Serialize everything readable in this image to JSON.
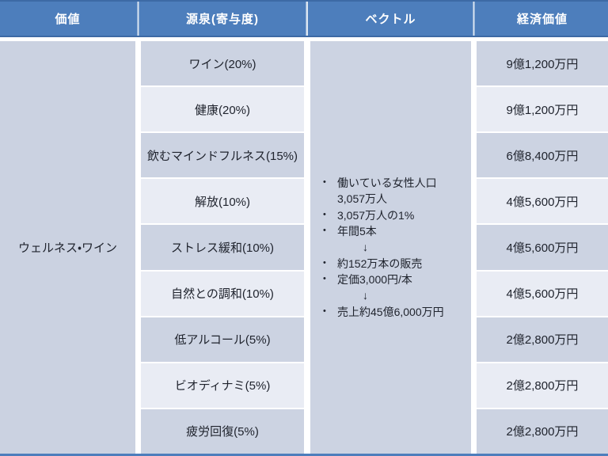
{
  "table": {
    "headers": [
      {
        "label": "価値"
      },
      {
        "label": "源泉(寄与度)"
      },
      {
        "label": "ベクトル"
      },
      {
        "label": "経済価値"
      }
    ],
    "value_cell": "ウェルネス・ワイン",
    "rows": [
      {
        "source": "ワイン(20%)",
        "economic": "9億1,200万円"
      },
      {
        "source": "健康(20%)",
        "economic": "9億1,200万円"
      },
      {
        "source": "飲むマインドフルネス(15%)",
        "economic": "6億8,400万円"
      },
      {
        "source": "解放(10%)",
        "economic": "4億5,600万円"
      },
      {
        "source": "ストレス緩和(10%)",
        "economic": "4億5,600万円"
      },
      {
        "source": "自然との調和(10%)",
        "economic": "4億5,600万円"
      },
      {
        "source": "低アルコール(5%)",
        "economic": "2億2,800万円"
      },
      {
        "source": "ビオディナミ(5%)",
        "economic": "2億2,800万円"
      },
      {
        "source": "疲労回復(5%)",
        "economic": "2億2,800万円"
      }
    ],
    "bullet_char": "•",
    "vector": {
      "lines": [
        {
          "type": "bullet",
          "text": "働いている女性人口"
        },
        {
          "type": "continuation",
          "text": "3,057万人"
        },
        {
          "type": "bullet",
          "text": "3,057万人の1%"
        },
        {
          "type": "bullet",
          "text": "年間5本"
        },
        {
          "type": "arrow",
          "text": "↓"
        },
        {
          "type": "bullet",
          "text": "約152万本の販売"
        },
        {
          "type": "bullet",
          "text": "定価3,000円/本"
        },
        {
          "type": "arrow",
          "text": "↓"
        },
        {
          "type": "bullet",
          "text": "売上約45億6,000万円"
        }
      ]
    }
  },
  "colors": {
    "header_bg": "#4d7ebc",
    "header_border": "#3d6aa5",
    "row_dark": "#ccd3e2",
    "row_light": "#e9ecf4",
    "merged_bg": "#cbd2e1",
    "text": "#20242e"
  }
}
